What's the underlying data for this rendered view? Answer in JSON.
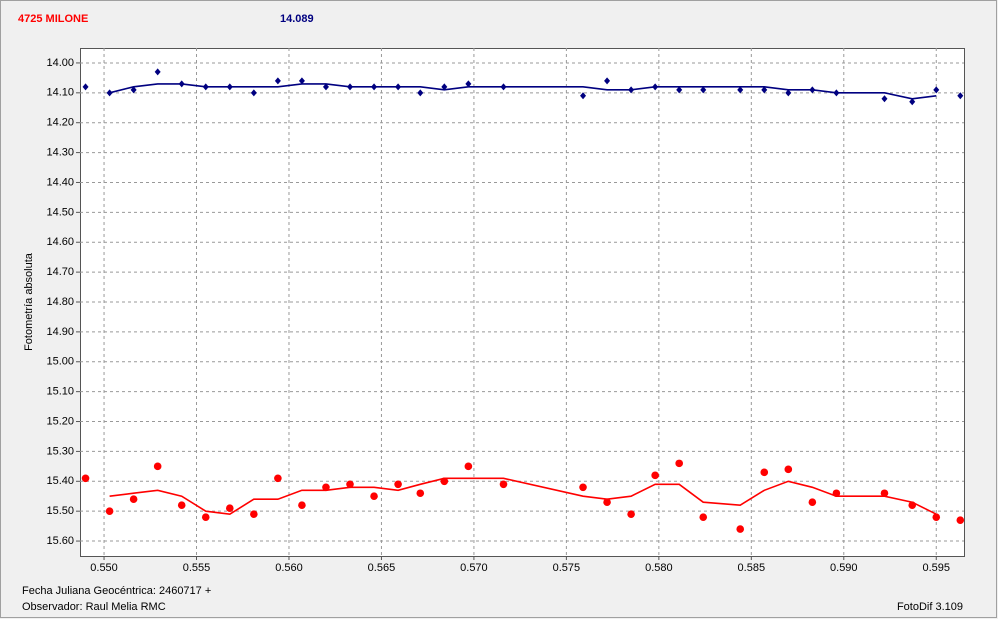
{
  "header": {
    "object": "4725 MILONE",
    "value": "14.089"
  },
  "footer": {
    "date": "Fecha Juliana Geocéntrica: 2460717 +",
    "observer": "Observador: Raul Melia RMC",
    "software": "FotoDif 3.109"
  },
  "chart_data": {
    "type": "scatter",
    "y_label": "Fotometría absoluta",
    "y_inverted": true,
    "grid": true,
    "xlim": [
      0.5487,
      0.5965
    ],
    "ylim": [
      13.95,
      15.65
    ],
    "xticks": [
      {
        "value": 0.55,
        "label": "0.550"
      },
      {
        "value": 0.555,
        "label": "0.555"
      },
      {
        "value": 0.56,
        "label": "0.560"
      },
      {
        "value": 0.565,
        "label": "0.565"
      },
      {
        "value": 0.57,
        "label": "0.570"
      },
      {
        "value": 0.575,
        "label": "0.575"
      },
      {
        "value": 0.58,
        "label": "0.580"
      },
      {
        "value": 0.585,
        "label": "0.585"
      },
      {
        "value": 0.59,
        "label": "0.590"
      },
      {
        "value": 0.595,
        "label": "0.595"
      }
    ],
    "yticks": [
      {
        "value": 14,
        "label": "14.00"
      },
      {
        "value": 14.1,
        "label": "14.10"
      },
      {
        "value": 14.2,
        "label": "14.20"
      },
      {
        "value": 14.3,
        "label": "14.30"
      },
      {
        "value": 14.4,
        "label": "14.40"
      },
      {
        "value": 14.5,
        "label": "14.50"
      },
      {
        "value": 14.6,
        "label": "14.60"
      },
      {
        "value": 14.7,
        "label": "14.70"
      },
      {
        "value": 14.8,
        "label": "14.80"
      },
      {
        "value": 14.9,
        "label": "14.90"
      },
      {
        "value": 15,
        "label": "15.00"
      },
      {
        "value": 15.1,
        "label": "15.10"
      },
      {
        "value": 15.2,
        "label": "15.20"
      },
      {
        "value": 15.3,
        "label": "15.30"
      },
      {
        "value": 15.4,
        "label": "15.40"
      },
      {
        "value": 15.5,
        "label": "15.50"
      },
      {
        "value": 15.6,
        "label": "15.60"
      }
    ],
    "series": [
      {
        "color": "#000080",
        "marker": "diamond",
        "x": [
          0.549,
          0.5503,
          0.5516,
          0.5529,
          0.5542,
          0.5555,
          0.5568,
          0.5581,
          0.5594,
          0.5607,
          0.562,
          0.5633,
          0.5646,
          0.5659,
          0.5671,
          0.5684,
          0.5697,
          0.5716,
          0.5759,
          0.5772,
          0.5785,
          0.5798,
          0.5811,
          0.5824,
          0.5844,
          0.5857,
          0.587,
          0.5883,
          0.5896,
          0.5922,
          0.5937,
          0.595,
          0.5963
        ],
        "values": [
          14.08,
          14.1,
          14.09,
          14.03,
          14.07,
          14.08,
          14.08,
          14.1,
          14.06,
          14.06,
          14.08,
          14.08,
          14.08,
          14.08,
          14.1,
          14.08,
          14.07,
          14.08,
          14.11,
          14.06,
          14.09,
          14.08,
          14.09,
          14.09,
          14.09,
          14.09,
          14.1,
          14.09,
          14.1,
          14.12,
          14.13,
          14.09,
          14.11
        ]
      },
      {
        "color": "#000080",
        "marker": "none",
        "x": [
          0.5503,
          0.5516,
          0.5529,
          0.5542,
          0.5555,
          0.5568,
          0.5581,
          0.5594,
          0.5607,
          0.562,
          0.5633,
          0.5646,
          0.5659,
          0.5671,
          0.5684,
          0.5697,
          0.5716,
          0.5759,
          0.5772,
          0.5785,
          0.5798,
          0.5811,
          0.5824,
          0.5844,
          0.5857,
          0.587,
          0.5883,
          0.5896,
          0.5922,
          0.5937,
          0.595
        ],
        "values": [
          14.1,
          14.08,
          14.07,
          14.07,
          14.08,
          14.08,
          14.08,
          14.08,
          14.07,
          14.07,
          14.08,
          14.08,
          14.08,
          14.08,
          14.09,
          14.08,
          14.08,
          14.08,
          14.09,
          14.09,
          14.08,
          14.08,
          14.08,
          14.08,
          14.08,
          14.09,
          14.09,
          14.1,
          14.1,
          14.12,
          14.11
        ]
      },
      {
        "color": "#ff0000",
        "marker": "circle",
        "x": [
          0.549,
          0.5503,
          0.5516,
          0.5529,
          0.5542,
          0.5555,
          0.5568,
          0.5581,
          0.5594,
          0.5607,
          0.562,
          0.5633,
          0.5646,
          0.5659,
          0.5671,
          0.5684,
          0.5697,
          0.5716,
          0.5759,
          0.5772,
          0.5785,
          0.5798,
          0.5811,
          0.5824,
          0.5844,
          0.5857,
          0.587,
          0.5883,
          0.5896,
          0.5922,
          0.5937,
          0.595,
          0.5963
        ],
        "values": [
          15.39,
          15.5,
          15.46,
          15.35,
          15.48,
          15.52,
          15.49,
          15.51,
          15.39,
          15.48,
          15.42,
          15.41,
          15.45,
          15.41,
          15.44,
          15.4,
          15.35,
          15.41,
          15.42,
          15.47,
          15.51,
          15.38,
          15.34,
          15.52,
          15.56,
          15.37,
          15.36,
          15.47,
          15.44,
          15.44,
          15.48,
          15.52,
          15.53
        ]
      },
      {
        "color": "#ff0000",
        "marker": "none",
        "x": [
          0.5503,
          0.5516,
          0.5529,
          0.5542,
          0.5555,
          0.5568,
          0.5581,
          0.5594,
          0.5607,
          0.562,
          0.5633,
          0.5646,
          0.5659,
          0.5671,
          0.5684,
          0.5697,
          0.5716,
          0.5759,
          0.5772,
          0.5785,
          0.5798,
          0.5811,
          0.5824,
          0.5844,
          0.5857,
          0.587,
          0.5883,
          0.5896,
          0.5922,
          0.5937,
          0.595
        ],
        "values": [
          15.45,
          15.44,
          15.43,
          15.45,
          15.5,
          15.51,
          15.46,
          15.46,
          15.43,
          15.43,
          15.42,
          15.42,
          15.43,
          15.41,
          15.39,
          15.39,
          15.39,
          15.45,
          15.46,
          15.45,
          15.41,
          15.41,
          15.47,
          15.48,
          15.43,
          15.4,
          15.42,
          15.45,
          15.45,
          15.47,
          15.51
        ]
      }
    ]
  }
}
